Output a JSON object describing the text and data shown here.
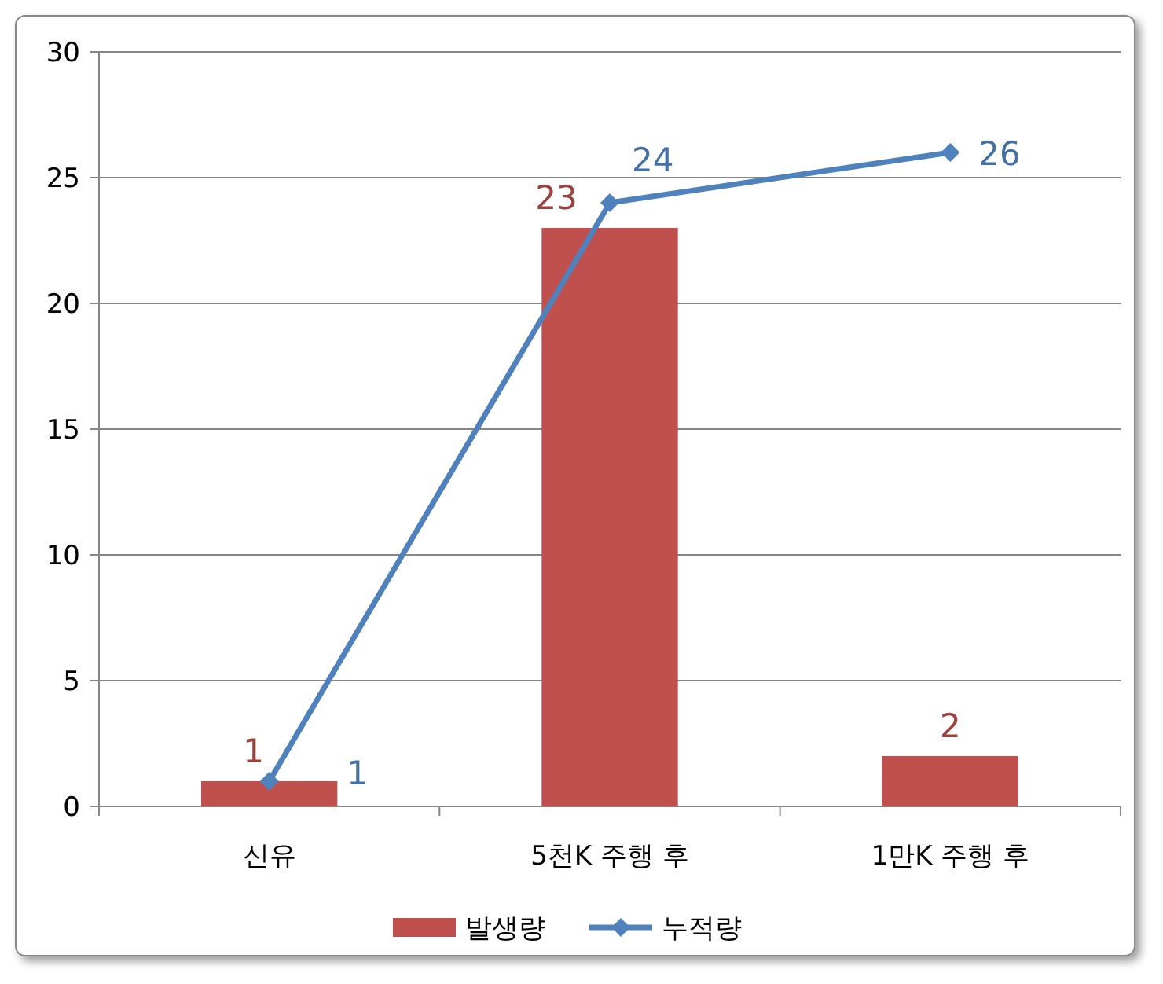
{
  "chart_data": {
    "type": "bar",
    "categories": [
      "신유",
      "5천K 주행 후",
      "1만K 주행 후"
    ],
    "series": [
      {
        "name": "발생량",
        "color": "#c0504d",
        "values": [
          1,
          23,
          2
        ]
      },
      {
        "name": "누적량",
        "type": "line",
        "color": "#4f81bd",
        "values": [
          1,
          24,
          26
        ]
      }
    ],
    "ylim": [
      0,
      30
    ],
    "yticks": [
      0,
      5,
      10,
      15,
      20,
      25,
      30
    ],
    "grid": "y",
    "legend": "bottom",
    "marker": "diamond",
    "line_style": "solid",
    "data_labels": true
  }
}
